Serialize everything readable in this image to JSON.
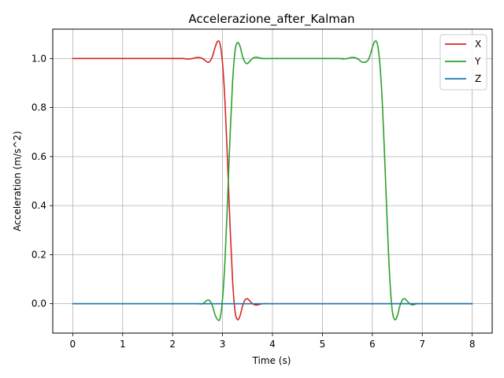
{
  "chart_data": {
    "type": "line",
    "title": "Accelerazione_after_Kalman",
    "xlabel": "Time (s)",
    "ylabel": "Acceleration (m/s^2)",
    "xlim": [
      -0.4,
      8.4
    ],
    "ylim": [
      -0.12,
      1.12
    ],
    "xticks": [
      0,
      1,
      2,
      3,
      4,
      5,
      6,
      7,
      8
    ],
    "yticks": [
      0.0,
      0.2,
      0.4,
      0.6,
      0.8,
      1.0
    ],
    "ytick_labels": [
      "0.0",
      "0.2",
      "0.4",
      "0.6",
      "0.8",
      "1.0"
    ],
    "grid": true,
    "legend_position": "top-right",
    "series": [
      {
        "name": "X",
        "color": "#d62728",
        "x": [
          0,
          2.0,
          2.2,
          2.3,
          2.4,
          2.5,
          2.6,
          2.7,
          2.75,
          2.8,
          2.85,
          2.9,
          2.95,
          3.0,
          3.05,
          3.1,
          3.15,
          3.2,
          3.25,
          3.3,
          3.35,
          3.4,
          3.45,
          3.5,
          3.55,
          3.6,
          3.65,
          3.7,
          3.8,
          3.9,
          4.0,
          4.3,
          8.0
        ],
        "y": [
          1.0,
          1.0,
          1.0,
          0.998,
          1.0,
          1.005,
          1.0,
          0.985,
          0.99,
          1.01,
          1.045,
          1.07,
          1.06,
          0.98,
          0.82,
          0.58,
          0.32,
          0.1,
          -0.03,
          -0.065,
          -0.05,
          -0.01,
          0.015,
          0.02,
          0.01,
          0.0,
          -0.005,
          -0.005,
          0.0,
          0.0,
          0.0,
          0.0,
          0.0
        ]
      },
      {
        "name": "Y",
        "color": "#2ca02c",
        "x": [
          0,
          2.0,
          2.2,
          2.3,
          2.4,
          2.5,
          2.6,
          2.7,
          2.75,
          2.8,
          2.85,
          2.9,
          2.95,
          3.0,
          3.05,
          3.1,
          3.15,
          3.2,
          3.25,
          3.3,
          3.35,
          3.4,
          3.45,
          3.5,
          3.55,
          3.6,
          3.65,
          3.7,
          3.8,
          4.0,
          5.3,
          5.4,
          5.5,
          5.6,
          5.7,
          5.8,
          5.9,
          5.95,
          6.0,
          6.05,
          6.1,
          6.15,
          6.2,
          6.25,
          6.3,
          6.35,
          6.4,
          6.45,
          6.5,
          6.55,
          6.6,
          6.65,
          6.7,
          6.75,
          6.8,
          6.9,
          7.0,
          8.0
        ],
        "y": [
          0.0,
          0.0,
          0.0,
          0.0,
          0.0,
          0.0,
          0.0,
          0.015,
          0.01,
          -0.01,
          -0.045,
          -0.065,
          -0.06,
          0.02,
          0.18,
          0.42,
          0.68,
          0.9,
          1.03,
          1.065,
          1.05,
          1.01,
          0.985,
          0.98,
          0.99,
          1.0,
          1.005,
          1.005,
          1.0,
          1.0,
          1.0,
          0.998,
          1.0,
          1.005,
          1.0,
          0.985,
          0.99,
          1.01,
          1.045,
          1.07,
          1.06,
          0.98,
          0.82,
          0.58,
          0.32,
          0.1,
          -0.03,
          -0.065,
          -0.05,
          -0.01,
          0.015,
          0.02,
          0.01,
          0.0,
          -0.005,
          0.0,
          0.0,
          0.0
        ]
      },
      {
        "name": "Z",
        "color": "#1f77b4",
        "x": [
          0,
          8.0
        ],
        "y": [
          0.0,
          0.0
        ]
      }
    ]
  }
}
